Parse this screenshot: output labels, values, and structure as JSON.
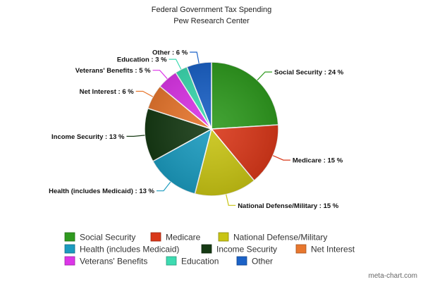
{
  "chart_data": {
    "type": "pie",
    "title": "Federal Government Tax Spending",
    "subtitle": "Pew Research Center",
    "label_separator": " : ",
    "label_unit": " %",
    "slices": [
      {
        "name": "Social Security",
        "value": 24,
        "color": "#2f9a1f"
      },
      {
        "name": "Medicare",
        "value": 15,
        "color": "#d9381a"
      },
      {
        "name": "National Defense/Military",
        "value": 15,
        "color": "#c8c414"
      },
      {
        "name": "Health (includes Medicaid)",
        "value": 13,
        "color": "#1b9bbf"
      },
      {
        "name": "Income Security",
        "value": 13,
        "color": "#163a14"
      },
      {
        "name": "Net Interest",
        "value": 6,
        "color": "#e8772e"
      },
      {
        "name": "Veterans' Benefits",
        "value": 5,
        "color": "#dc36e8"
      },
      {
        "name": "Education",
        "value": 3,
        "color": "#3ddbb1"
      },
      {
        "name": "Other",
        "value": 6,
        "color": "#1b62c7"
      }
    ],
    "legend_position": "bottom"
  },
  "credit": "meta-chart.com"
}
